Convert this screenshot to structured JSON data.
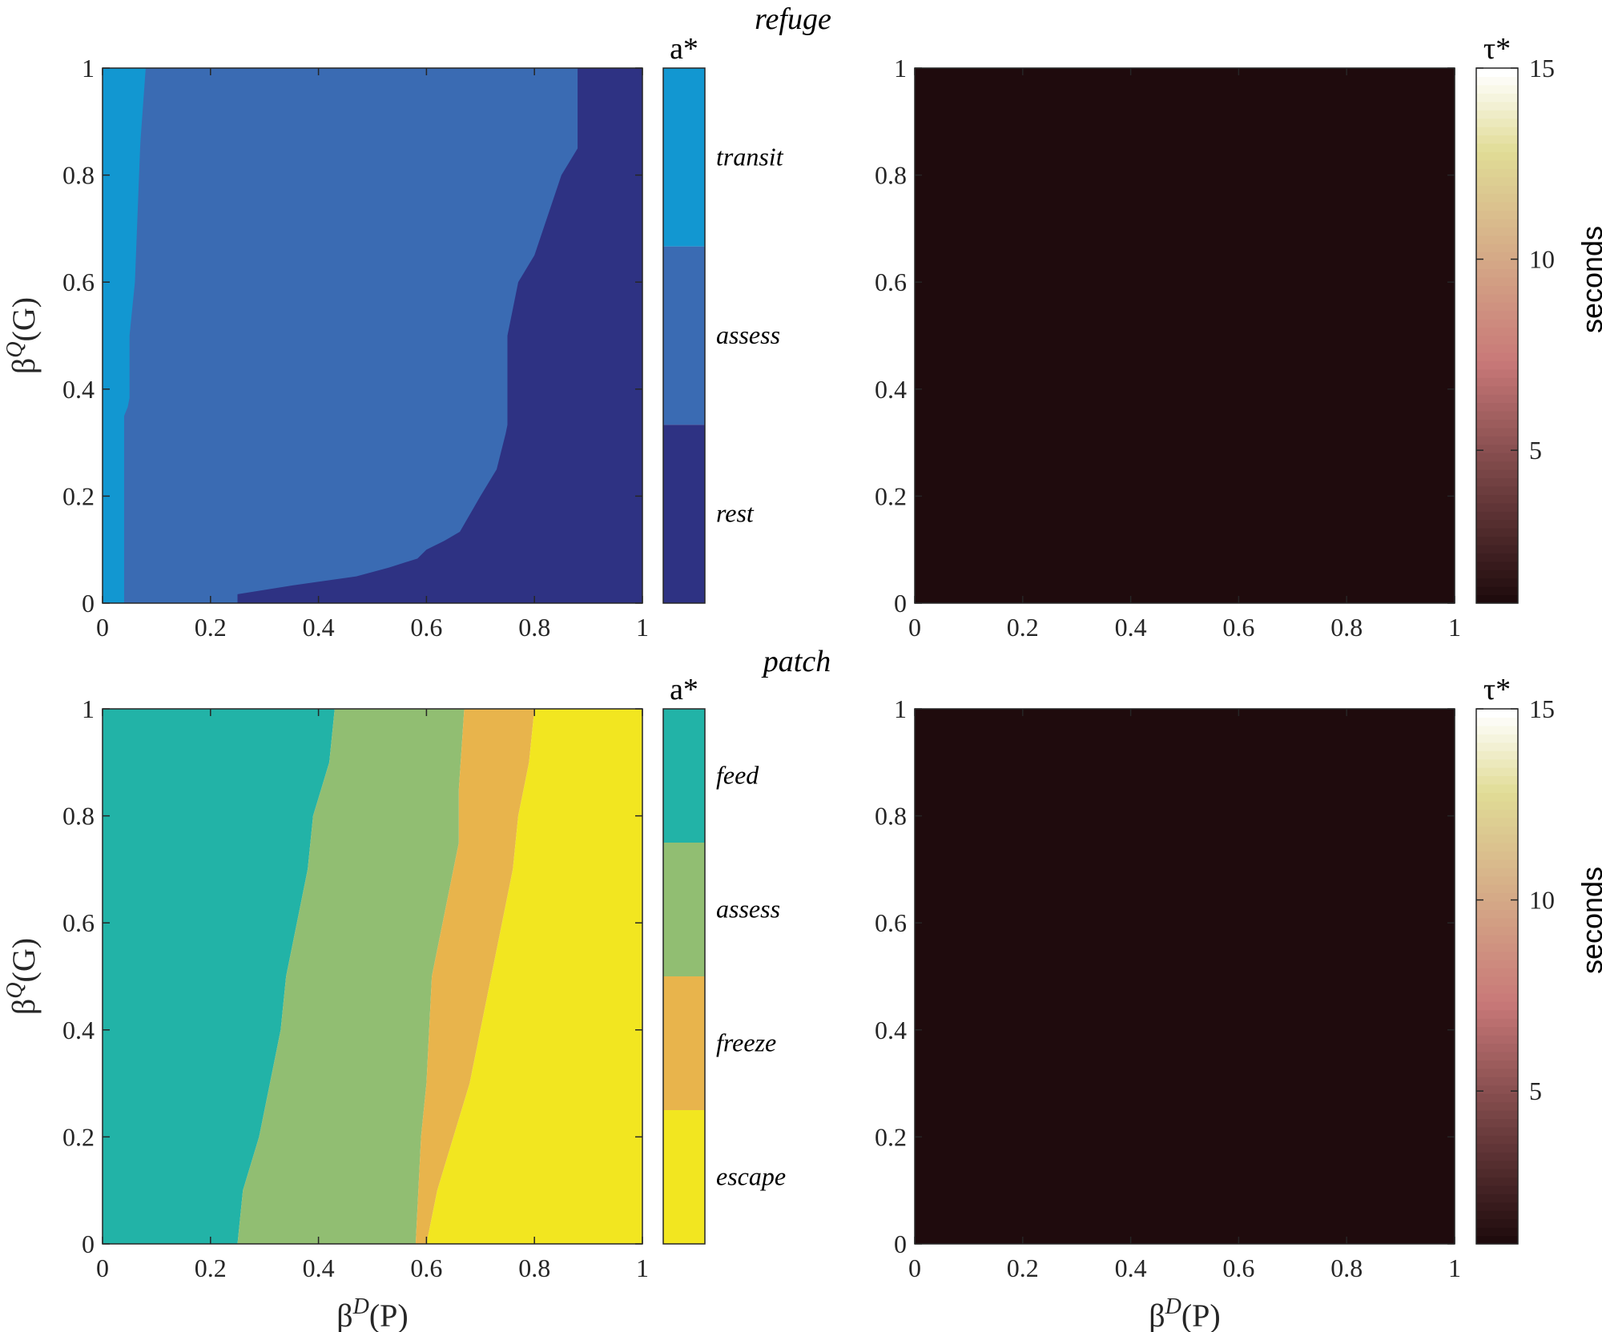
{
  "colors": {
    "transit": "#1297d1",
    "assess_top": "#3a6bb3",
    "rest": "#2e3283",
    "feed": "#22b3a7",
    "assess_bottom": "#91be72",
    "freeze": "#e8b44c",
    "escape": "#f2e620",
    "tau_min": "#1f0b0d",
    "tau_max": "#ffffff"
  },
  "chart_data": [
    {
      "id": "refuge-action",
      "type": "heatmap",
      "title": "refuge",
      "xlabel": "βD(P)",
      "ylabel": "βQ(G)",
      "xlim": [
        0,
        1
      ],
      "ylim": [
        0,
        1
      ],
      "xticks": [
        "0",
        "0.2",
        "0.4",
        "0.6",
        "0.8",
        "1"
      ],
      "yticks": [
        "0",
        "0.2",
        "0.4",
        "0.6",
        "0.8",
        "1"
      ],
      "colorbar": {
        "title": "a*",
        "categories": [
          "transit",
          "assess",
          "rest"
        ]
      },
      "regions": [
        {
          "label": "transit",
          "boundary_upper_x": [
            [
              0,
              0.04
            ],
            [
              0.36,
              0.04
            ],
            [
              0.37,
              0.05
            ],
            [
              0.5,
              0.05
            ],
            [
              0.6,
              0.06
            ],
            [
              0.86,
              0.07
            ],
            [
              1,
              0.08
            ]
          ]
        },
        {
          "label": "rest",
          "boundary_lower_x": [
            [
              0,
              0.25
            ],
            [
              0.02,
              0.25
            ],
            [
              0.03,
              0.33
            ],
            [
              0.05,
              0.47
            ],
            [
              0.08,
              0.58
            ],
            [
              0.1,
              0.6
            ],
            [
              0.13,
              0.66
            ],
            [
              0.2,
              0.7
            ],
            [
              0.25,
              0.73
            ],
            [
              0.33,
              0.75
            ],
            [
              0.5,
              0.75
            ],
            [
              0.6,
              0.77
            ],
            [
              0.65,
              0.8
            ],
            [
              0.8,
              0.85
            ],
            [
              0.85,
              0.88
            ],
            [
              0.93,
              0.88
            ],
            [
              1,
              0.88
            ]
          ]
        }
      ]
    },
    {
      "id": "refuge-tau",
      "type": "heatmap",
      "xlim": [
        0,
        1
      ],
      "ylim": [
        0,
        1
      ],
      "xticks": [
        "0",
        "0.2",
        "0.4",
        "0.6",
        "0.8",
        "1"
      ],
      "yticks": [
        "0",
        "0.2",
        "0.4",
        "0.6",
        "0.8",
        "1"
      ],
      "value": 1,
      "colorbar": {
        "title": "τ*",
        "label": "seconds",
        "range": [
          1,
          15
        ],
        "ticks": [
          "5",
          "10",
          "15"
        ]
      }
    },
    {
      "id": "patch-action",
      "type": "heatmap",
      "title": "patch",
      "xlabel": "βD(P)",
      "ylabel": "βQ(G)",
      "xlim": [
        0,
        1
      ],
      "ylim": [
        0,
        1
      ],
      "xticks": [
        "0",
        "0.2",
        "0.4",
        "0.6",
        "0.8",
        "1"
      ],
      "yticks": [
        "0",
        "0.2",
        "0.4",
        "0.6",
        "0.8",
        "1"
      ],
      "colorbar": {
        "title": "a*",
        "categories": [
          "feed",
          "assess",
          "freeze",
          "escape"
        ]
      },
      "boundaries": [
        {
          "between": [
            "feed",
            "assess"
          ],
          "points": [
            [
              0,
              0.25
            ],
            [
              0.1,
              0.26
            ],
            [
              0.2,
              0.29
            ],
            [
              0.3,
              0.31
            ],
            [
              0.4,
              0.33
            ],
            [
              0.5,
              0.34
            ],
            [
              0.6,
              0.36
            ],
            [
              0.7,
              0.38
            ],
            [
              0.8,
              0.39
            ],
            [
              0.9,
              0.42
            ],
            [
              1,
              0.43
            ]
          ]
        },
        {
          "between": [
            "assess",
            "freeze"
          ],
          "points": [
            [
              0,
              0.58
            ],
            [
              0.2,
              0.59
            ],
            [
              0.3,
              0.6
            ],
            [
              0.5,
              0.61
            ],
            [
              0.6,
              0.63
            ],
            [
              0.65,
              0.64
            ],
            [
              0.75,
              0.66
            ],
            [
              0.85,
              0.66
            ],
            [
              1,
              0.67
            ]
          ]
        },
        {
          "between": [
            "freeze",
            "escape"
          ],
          "points": [
            [
              0,
              0.6
            ],
            [
              0.1,
              0.62
            ],
            [
              0.2,
              0.65
            ],
            [
              0.3,
              0.68
            ],
            [
              0.4,
              0.7
            ],
            [
              0.5,
              0.72
            ],
            [
              0.6,
              0.74
            ],
            [
              0.7,
              0.76
            ],
            [
              0.8,
              0.77
            ],
            [
              0.9,
              0.79
            ],
            [
              1,
              0.8
            ]
          ]
        }
      ]
    },
    {
      "id": "patch-tau",
      "type": "heatmap",
      "xlabel": "βD(P)",
      "xlim": [
        0,
        1
      ],
      "ylim": [
        0,
        1
      ],
      "xticks": [
        "0",
        "0.2",
        "0.4",
        "0.6",
        "0.8",
        "1"
      ],
      "yticks": [
        "0",
        "0.2",
        "0.4",
        "0.6",
        "0.8",
        "1"
      ],
      "value": 1,
      "colorbar": {
        "title": "τ*",
        "label": "seconds",
        "range": [
          1,
          15
        ],
        "ticks": [
          "5",
          "10",
          "15"
        ]
      }
    }
  ]
}
